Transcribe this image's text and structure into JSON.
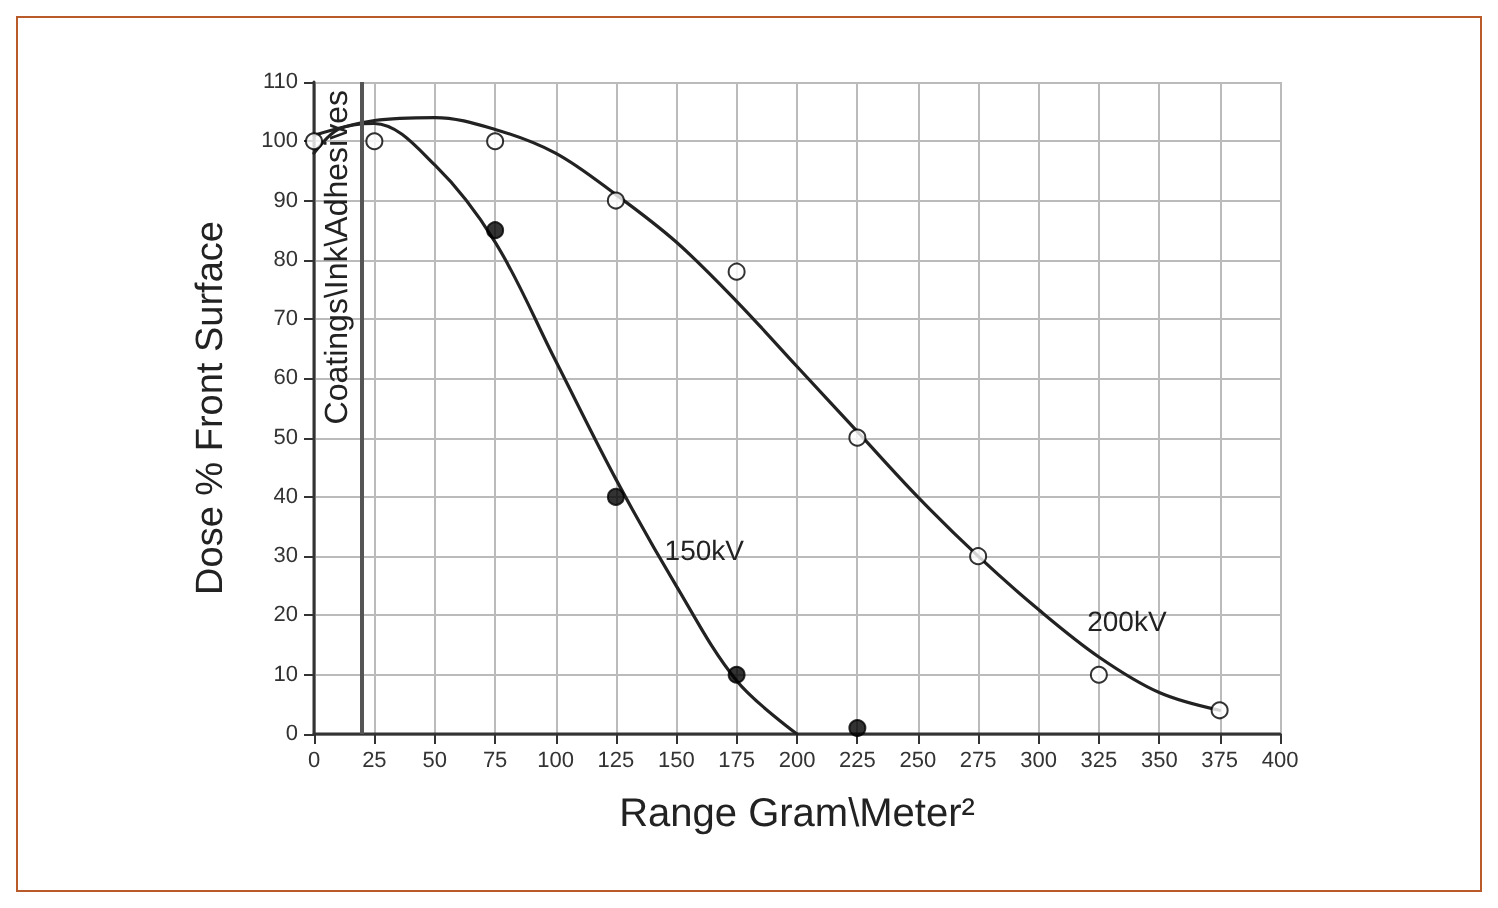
{
  "chart_data": {
    "type": "scatter",
    "xlabel": "Range Gram\\Meter²",
    "ylabel": "Dose % Front Surface",
    "xlim": [
      0,
      400
    ],
    "xticks": [
      0,
      25,
      50,
      75,
      100,
      125,
      150,
      175,
      200,
      225,
      250,
      275,
      300,
      325,
      350,
      375,
      400
    ],
    "ylim": [
      0,
      110
    ],
    "yticks": [
      0,
      10,
      20,
      30,
      40,
      50,
      60,
      70,
      80,
      90,
      100,
      110
    ],
    "grid": true,
    "marker": "circle",
    "series": [
      {
        "type": "line",
        "name": "150kV",
        "color": "#222222",
        "marker": "none",
        "x": [
          0,
          10,
          25,
          50,
          75,
          100,
          125,
          150,
          175,
          200
        ],
        "values": [
          98,
          102,
          103,
          96,
          83,
          63,
          43,
          25,
          9,
          0
        ]
      },
      {
        "type": "line",
        "name": "200kV",
        "color": "#222222",
        "marker": "none",
        "x": [
          0,
          25,
          50,
          75,
          100,
          125,
          150,
          175,
          200,
          225,
          250,
          275,
          300,
          325,
          350,
          375
        ],
        "values": [
          101,
          103.5,
          104,
          102,
          98,
          91,
          83,
          73,
          62,
          51,
          40,
          30,
          21,
          13,
          7,
          4
        ]
      },
      {
        "type": "scatter",
        "color": "#000000",
        "x": [
          75,
          125,
          175,
          225
        ],
        "values": [
          85,
          40,
          10,
          1
        ]
      },
      {
        "type": "scatter",
        "color": "#ffffff",
        "x": [
          0,
          25,
          75,
          125,
          175,
          225,
          275,
          325,
          375
        ],
        "values": [
          100,
          100,
          100,
          90,
          78,
          50,
          30,
          10,
          4
        ]
      }
    ],
    "ref_lines": [
      {
        "axis": "x",
        "value": 20,
        "label": "Coatings\\Ink\\Adhesives",
        "color": "#555555"
      }
    ]
  }
}
